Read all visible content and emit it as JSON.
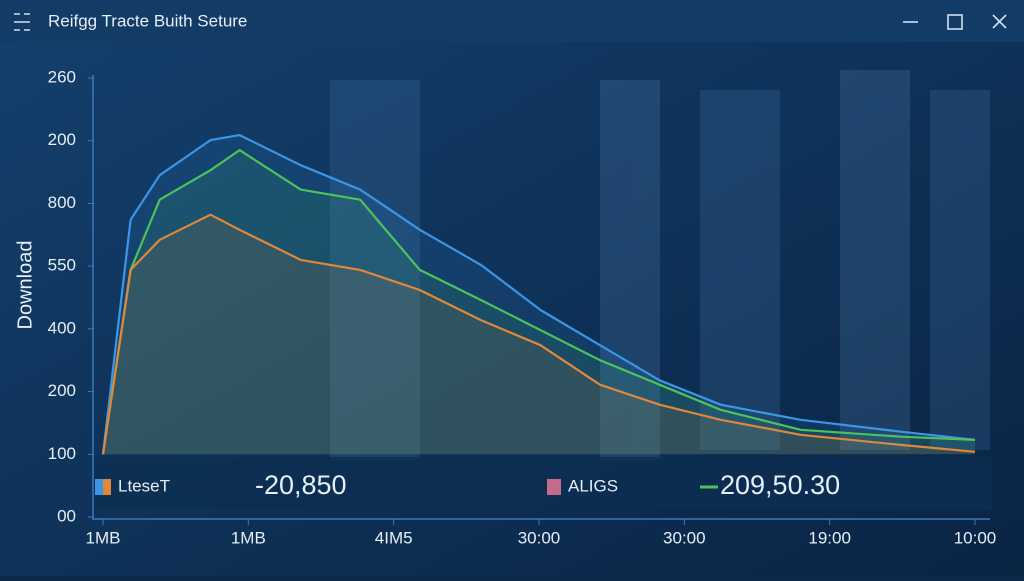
{
  "window": {
    "title": "Reifgg Tracte Buith Seture"
  },
  "chart_data": {
    "type": "line",
    "y_label": "Download",
    "ylim": [
      0,
      7
    ],
    "yticks": [
      {
        "value": 0,
        "label": "00"
      },
      {
        "value": 1,
        "label": "100"
      },
      {
        "value": 2,
        "label": "200"
      },
      {
        "value": 3,
        "label": "400"
      },
      {
        "value": 4,
        "label": "550"
      },
      {
        "value": 5,
        "label": "800"
      },
      {
        "value": 6,
        "label": "200"
      },
      {
        "value": 7,
        "label": "260"
      }
    ],
    "xlim": [
      0,
      6
    ],
    "xticks": [
      {
        "value": 0,
        "label": "1MB"
      },
      {
        "value": 1,
        "label": "1MB"
      },
      {
        "value": 2,
        "label": "4IM5"
      },
      {
        "value": 3,
        "label": "30:00"
      },
      {
        "value": 4,
        "label": "30:00"
      },
      {
        "value": 5,
        "label": "19:00"
      },
      {
        "value": 6,
        "label": "10:00"
      }
    ],
    "x": [
      0,
      0.19,
      0.39,
      0.74,
      0.94,
      1.36,
      1.77,
      2.18,
      2.6,
      3.01,
      3.42,
      3.83,
      4.25,
      4.8,
      5.49,
      6
    ],
    "series": [
      {
        "color": "#3b96e6",
        "values": [
          1.0,
          4.74,
          5.45,
          6.01,
          6.09,
          5.61,
          5.22,
          4.58,
          4.02,
          3.3,
          2.74,
          2.18,
          1.79,
          1.55,
          1.36,
          1.23
        ]
      },
      {
        "color": "#4cc35a",
        "values": [
          1.0,
          3.94,
          5.06,
          5.53,
          5.85,
          5.22,
          5.06,
          3.94,
          3.46,
          2.98,
          2.5,
          2.11,
          1.71,
          1.39,
          1.28,
          1.23
        ]
      },
      {
        "color": "#e0873c",
        "values": [
          1.0,
          3.94,
          4.42,
          4.82,
          4.58,
          4.1,
          3.94,
          3.62,
          3.14,
          2.74,
          2.11,
          1.79,
          1.55,
          1.31,
          1.15,
          1.04
        ]
      }
    ],
    "legend_items": [
      {
        "label": "LteseT",
        "value_text": "-20,850",
        "color": "#e0873c"
      },
      {
        "label": "ALIGS",
        "value_text": "209,50.30",
        "color": "#c46a8a"
      }
    ]
  }
}
